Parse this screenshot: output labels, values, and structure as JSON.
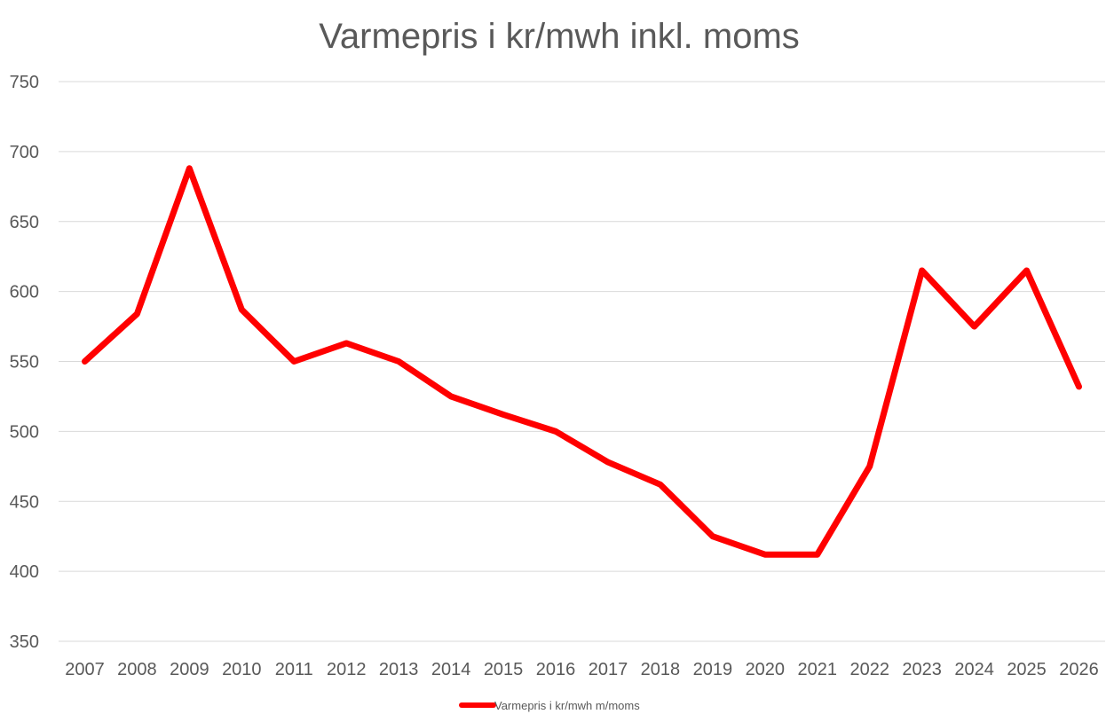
{
  "chart_data": {
    "type": "line",
    "title": "Varmepris i kr/mwh inkl. moms",
    "xlabel": "",
    "ylabel": "",
    "categories": [
      "2007",
      "2008",
      "2009",
      "2010",
      "2011",
      "2012",
      "2013",
      "2014",
      "2015",
      "2016",
      "2017",
      "2018",
      "2019",
      "2020",
      "2021",
      "2022",
      "2023",
      "2024",
      "2025",
      "2026"
    ],
    "series": [
      {
        "name": "Varmepris i kr/mwh m/moms",
        "color": "#ff0000",
        "values": [
          550,
          584,
          688,
          587,
          550,
          563,
          550,
          525,
          512,
          500,
          478,
          462,
          425,
          412,
          412,
          475,
          615,
          575,
          615,
          532
        ]
      }
    ],
    "ylim": [
      350,
      750
    ],
    "yticks": [
      350,
      400,
      450,
      500,
      550,
      600,
      650,
      700,
      750
    ],
    "grid": true,
    "legend": "bottom"
  }
}
